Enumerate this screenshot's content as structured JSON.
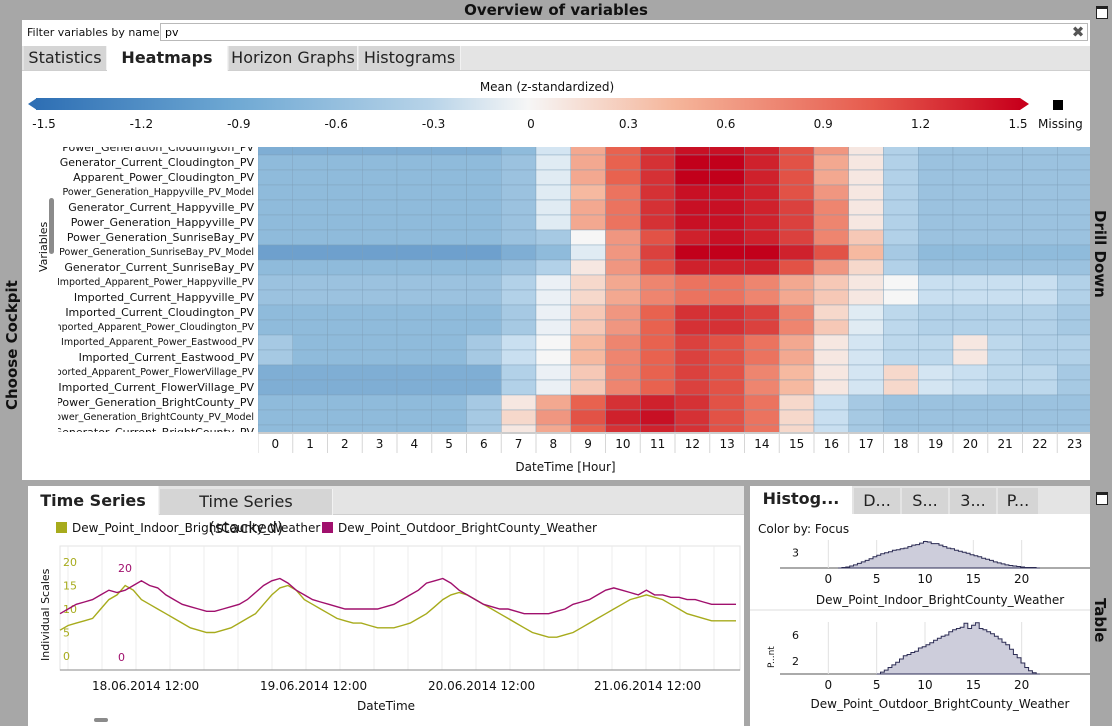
{
  "window": {
    "title": "Overview of variables"
  },
  "side_labels": {
    "left": "Choose Cockpit",
    "right_top": "Drill Down",
    "right_bottom": "Table"
  },
  "filter": {
    "label": "Filter variables by name:",
    "value": "pv"
  },
  "top_tabs": [
    {
      "label": "Statistics",
      "active": false
    },
    {
      "label": "Heatmaps",
      "active": true
    },
    {
      "label": "Horizon Graphs",
      "active": false
    },
    {
      "label": "Histograms",
      "active": false
    }
  ],
  "colorbar": {
    "title": "Mean (z-standardized)",
    "ticks": [
      "-1.5",
      "-1.2",
      "-0.9",
      "-0.6",
      "-0.3",
      "0",
      "0.3",
      "0.6",
      "0.9",
      "1.2",
      "1.5"
    ],
    "missing_label": "Missing",
    "low_color": "#2e6fb4",
    "mid_color": "#f6f6f6",
    "high_color": "#c8001c"
  },
  "heatmap": {
    "y_title": "Variables",
    "x_title": "DateTime [Hour]",
    "hours": [
      "0",
      "1",
      "2",
      "3",
      "4",
      "5",
      "6",
      "7",
      "8",
      "9",
      "10",
      "11",
      "12",
      "13",
      "14",
      "15",
      "16",
      "17",
      "18",
      "19",
      "20",
      "21",
      "22",
      "23"
    ],
    "rows": [
      {
        "label": "Power_Generation_Cloudington_PV",
        "small": false,
        "values": [
          -1.0,
          -1.0,
          -1.0,
          -1.0,
          -1.0,
          -1.0,
          -1.0,
          -0.9,
          -0.3,
          0.5,
          0.9,
          1.2,
          1.4,
          1.4,
          1.3,
          1.0,
          0.6,
          0.1,
          -0.6,
          -0.8,
          -0.8,
          -0.8,
          -0.8,
          -0.8
        ]
      },
      {
        "label": "Generator_Current_Cloudington_PV",
        "small": false,
        "values": [
          -0.9,
          -0.9,
          -0.9,
          -0.9,
          -0.9,
          -0.9,
          -0.9,
          -0.8,
          -0.2,
          0.5,
          0.9,
          1.2,
          1.5,
          1.5,
          1.3,
          1.0,
          0.5,
          0.1,
          -0.6,
          -0.8,
          -0.8,
          -0.8,
          -0.8,
          -0.8
        ]
      },
      {
        "label": "Apparent_Power_Cloudington_PV",
        "small": false,
        "values": [
          -0.9,
          -0.9,
          -0.9,
          -0.9,
          -0.9,
          -0.9,
          -0.9,
          -0.8,
          -0.2,
          0.5,
          0.9,
          1.2,
          1.5,
          1.5,
          1.3,
          1.0,
          0.5,
          0.1,
          -0.6,
          -0.8,
          -0.8,
          -0.8,
          -0.8,
          -0.8
        ]
      },
      {
        "label": "Power_Generation_Happyville_PV_Model",
        "small": true,
        "values": [
          -0.9,
          -0.9,
          -0.9,
          -0.9,
          -0.9,
          -0.9,
          -0.9,
          -0.8,
          -0.2,
          0.4,
          0.8,
          1.2,
          1.4,
          1.4,
          1.3,
          1.0,
          0.6,
          0.1,
          -0.6,
          -0.8,
          -0.8,
          -0.8,
          -0.8,
          -0.8
        ]
      },
      {
        "label": "Generator_Current_Happyville_PV",
        "small": false,
        "values": [
          -0.9,
          -0.9,
          -0.9,
          -0.9,
          -0.9,
          -0.9,
          -0.9,
          -0.8,
          -0.2,
          0.5,
          0.8,
          1.2,
          1.4,
          1.4,
          1.3,
          1.1,
          0.7,
          0.1,
          -0.6,
          -0.8,
          -0.8,
          -0.8,
          -0.8,
          -0.8
        ]
      },
      {
        "label": "Power_Generation_Happyville_PV",
        "small": false,
        "values": [
          -0.9,
          -0.9,
          -0.9,
          -0.9,
          -0.9,
          -0.9,
          -0.9,
          -0.8,
          -0.2,
          0.5,
          0.8,
          1.2,
          1.4,
          1.4,
          1.3,
          1.1,
          0.7,
          0.1,
          -0.6,
          -0.8,
          -0.8,
          -0.8,
          -0.8,
          -0.8
        ]
      },
      {
        "label": "Power_Generation_SunriseBay_PV",
        "small": false,
        "values": [
          -0.9,
          -0.9,
          -0.9,
          -0.9,
          -0.9,
          -0.9,
          -0.9,
          -0.8,
          -0.7,
          0.0,
          0.6,
          1.0,
          1.3,
          1.4,
          1.3,
          1.1,
          0.7,
          0.3,
          -0.6,
          -0.8,
          -0.8,
          -0.8,
          -0.8,
          -0.8
        ]
      },
      {
        "label": "Power_Generation_SunriseBay_PV_Model",
        "small": true,
        "values": [
          -1.1,
          -1.1,
          -1.1,
          -1.1,
          -1.1,
          -1.1,
          -1.1,
          -1.0,
          -0.9,
          -0.2,
          0.6,
          1.1,
          1.5,
          1.5,
          1.5,
          1.3,
          1.0,
          0.4,
          -0.7,
          -0.9,
          -0.9,
          -0.9,
          -0.9,
          -0.9
        ]
      },
      {
        "label": "Generator_Current_SunriseBay_PV",
        "small": false,
        "values": [
          -0.9,
          -0.9,
          -0.9,
          -0.9,
          -0.9,
          -0.9,
          -0.9,
          -0.8,
          -0.6,
          0.1,
          0.6,
          1.0,
          1.3,
          1.3,
          1.3,
          1.0,
          0.6,
          0.2,
          -0.6,
          -0.8,
          -0.8,
          -0.8,
          -0.8,
          -0.8
        ]
      },
      {
        "label": "Imported_Apparent_Power_Happyville_PV",
        "small": true,
        "values": [
          -0.8,
          -0.8,
          -0.8,
          -0.8,
          -0.8,
          -0.8,
          -0.8,
          -0.6,
          -0.1,
          0.2,
          0.5,
          0.7,
          0.8,
          0.8,
          0.7,
          0.5,
          0.3,
          0.1,
          0.0,
          -0.4,
          -0.4,
          -0.4,
          -0.4,
          -0.6
        ]
      },
      {
        "label": "Imported_Current_Happyville_PV",
        "small": false,
        "values": [
          -0.8,
          -0.8,
          -0.8,
          -0.8,
          -0.8,
          -0.8,
          -0.8,
          -0.6,
          -0.1,
          0.2,
          0.5,
          0.7,
          0.8,
          0.8,
          0.7,
          0.5,
          0.3,
          0.1,
          0.0,
          -0.4,
          -0.4,
          -0.4,
          -0.4,
          -0.6
        ]
      },
      {
        "label": "Imported_Current_Cloudington_PV",
        "small": false,
        "values": [
          -0.9,
          -0.9,
          -0.9,
          -0.9,
          -0.9,
          -0.9,
          -0.9,
          -0.7,
          -0.1,
          0.3,
          0.6,
          0.9,
          1.2,
          1.2,
          1.1,
          0.7,
          0.2,
          -0.2,
          -0.5,
          -0.6,
          -0.6,
          -0.6,
          -0.6,
          -0.7
        ]
      },
      {
        "label": "Imported_Apparent_Power_Cloudington_PV",
        "small": true,
        "values": [
          -0.9,
          -0.9,
          -0.9,
          -0.9,
          -0.9,
          -0.9,
          -0.9,
          -0.7,
          -0.1,
          0.3,
          0.6,
          0.9,
          1.2,
          1.2,
          1.1,
          0.7,
          0.3,
          -0.2,
          -0.5,
          -0.6,
          -0.6,
          -0.6,
          -0.6,
          -0.7
        ]
      },
      {
        "label": "Imported_Apparent_Power_Eastwood_PV",
        "small": true,
        "values": [
          -0.7,
          -0.9,
          -0.9,
          -0.9,
          -0.9,
          -0.9,
          -0.7,
          -0.4,
          0.0,
          0.4,
          0.7,
          0.9,
          1.1,
          1.0,
          0.8,
          0.5,
          0.1,
          -0.3,
          -0.5,
          -0.5,
          0.1,
          -0.5,
          -0.6,
          -0.6
        ]
      },
      {
        "label": "Imported_Current_Eastwood_PV",
        "small": false,
        "values": [
          -0.7,
          -0.9,
          -0.9,
          -0.9,
          -0.9,
          -0.9,
          -0.7,
          -0.4,
          0.0,
          0.4,
          0.7,
          0.9,
          1.1,
          1.0,
          0.8,
          0.5,
          0.1,
          -0.3,
          -0.5,
          -0.5,
          0.1,
          -0.5,
          -0.6,
          -0.6
        ]
      },
      {
        "label": "Imported_Apparent_Power_FlowerVillage_PV",
        "small": true,
        "values": [
          -1.0,
          -1.0,
          -1.0,
          -1.0,
          -1.0,
          -1.0,
          -1.0,
          -0.6,
          -0.1,
          0.3,
          0.7,
          0.9,
          1.1,
          1.0,
          0.7,
          0.4,
          0.1,
          -0.3,
          0.2,
          -0.3,
          -0.4,
          -0.5,
          -0.5,
          -0.7
        ]
      },
      {
        "label": "Imported_Current_FlowerVillage_PV",
        "small": false,
        "values": [
          -1.0,
          -1.0,
          -1.0,
          -1.0,
          -1.0,
          -1.0,
          -1.0,
          -0.6,
          -0.1,
          0.3,
          0.7,
          0.9,
          1.1,
          1.0,
          0.7,
          0.4,
          0.1,
          -0.3,
          0.2,
          -0.3,
          -0.4,
          -0.5,
          -0.5,
          -0.7
        ]
      },
      {
        "label": "Power_Generation_BrightCounty_PV",
        "small": false,
        "values": [
          -0.9,
          -0.9,
          -0.9,
          -0.9,
          -0.9,
          -0.9,
          -0.7,
          0.1,
          0.5,
          0.9,
          1.2,
          1.3,
          1.2,
          1.0,
          0.8,
          0.2,
          -0.4,
          -0.7,
          -0.8,
          -0.8,
          -0.8,
          -0.8,
          -0.8,
          -0.8
        ]
      },
      {
        "label": "Power_Generation_BrightCounty_PV_Model",
        "small": true,
        "values": [
          -0.9,
          -0.9,
          -0.9,
          -0.9,
          -0.9,
          -0.9,
          -0.7,
          0.2,
          0.6,
          1.0,
          1.3,
          1.4,
          1.2,
          1.0,
          0.8,
          0.2,
          -0.4,
          -0.7,
          -0.8,
          -0.8,
          -0.8,
          -0.8,
          -0.8,
          -0.8
        ]
      },
      {
        "label": "Generator_Current_BrightCounty_PV",
        "small": false,
        "values": [
          -0.9,
          -0.9,
          -0.9,
          -0.9,
          -0.9,
          -0.9,
          -0.7,
          0.1,
          0.5,
          0.9,
          1.2,
          1.3,
          1.2,
          1.0,
          0.8,
          0.2,
          -0.4,
          -0.7,
          -0.8,
          -0.8,
          -0.8,
          -0.8,
          -0.8,
          -0.8
        ]
      }
    ]
  },
  "time_series": {
    "tabs": [
      {
        "label": "Time Series",
        "active": true
      },
      {
        "label": "Time Series (stacked)",
        "active": false
      }
    ],
    "series": [
      {
        "name": "Dew_Point_Indoor_BrightCounty_Weather",
        "color": "#a7ab1c"
      },
      {
        "name": "Dew_Point_Outdoor_BrightCounty_Weather",
        "color": "#a0106d"
      }
    ],
    "y_title": "Individual Scales",
    "scale1_ticks": [
      "20",
      "15",
      "10",
      "5",
      "0"
    ],
    "scale2_ticks": [
      "20",
      "0"
    ],
    "x_ticks": [
      "18.06.2014 12:00",
      "19.06.2014 12:00",
      "20.06.2014 12:00",
      "21.06.2014 12:00"
    ],
    "x_title": "DateTime",
    "indoor": [
      5.5,
      6.5,
      7,
      7.5,
      8,
      10,
      12,
      13,
      15,
      14,
      12,
      11,
      10,
      9,
      8,
      7,
      6,
      5.5,
      5,
      5,
      5.5,
      6,
      7,
      8,
      9,
      11,
      13,
      14.5,
      15,
      14,
      12,
      11,
      10,
      9,
      8,
      7.5,
      7,
      7,
      6.5,
      6,
      6,
      6,
      6.5,
      7,
      8,
      9,
      10.5,
      12,
      13,
      13.5,
      13,
      12,
      11,
      10,
      9,
      8,
      7,
      6,
      5,
      4.5,
      4,
      4,
      4.5,
      5,
      6,
      7,
      8,
      9,
      10,
      11,
      12,
      12.5,
      13,
      12.5,
      12,
      11,
      10,
      9,
      8.5,
      8,
      7.5,
      7.5,
      7.5,
      7.5
    ],
    "outdoor": [
      9,
      10,
      11,
      11.5,
      12,
      13,
      14,
      13.5,
      14,
      15,
      16,
      15,
      14.5,
      13,
      12,
      11,
      10.5,
      10,
      9.5,
      9.5,
      10,
      10.5,
      11,
      12,
      13.5,
      15,
      16,
      16.5,
      15.5,
      14,
      13,
      12,
      11.5,
      11,
      10.5,
      10,
      10,
      10,
      10,
      10,
      10.5,
      11,
      12,
      13,
      14,
      15.5,
      16,
      16.5,
      15.5,
      14,
      13,
      12,
      11,
      10.5,
      10,
      10,
      9.5,
      9,
      9,
      9,
      9,
      9.5,
      10,
      11,
      11.5,
      12,
      13,
      14,
      14.5,
      14,
      13.5,
      13,
      14,
      13,
      13,
      12.5,
      12.5,
      12,
      12,
      11.5,
      11,
      11,
      11,
      11
    ]
  },
  "histograms": {
    "tabs": [
      {
        "label": "Histog...",
        "active": true
      },
      {
        "label": "D...",
        "active": false
      },
      {
        "label": "S...",
        "active": false
      },
      {
        "label": "3...",
        "active": false
      },
      {
        "label": "P...",
        "active": false
      }
    ],
    "color_by": "Color by: Focus",
    "x_ticks": [
      "0",
      "5",
      "10",
      "15",
      "20"
    ],
    "hist1": {
      "name": "Dew_Point_Indoor_BrightCounty_Weather",
      "y_ticks": [
        "3"
      ],
      "x_min": -5,
      "x_max": 25,
      "bin_start": 1,
      "counts": [
        0,
        0.1,
        0.2,
        0.4,
        0.6,
        0.9,
        1.2,
        1.5,
        1.8,
        2.2,
        2.5,
        2.8,
        3,
        3.2,
        3.5,
        3.6,
        3.8,
        3.9,
        4.2,
        4.5,
        4.6,
        4.9,
        5.2,
        5.1,
        4.8,
        4.8,
        4.5,
        4.2,
        3.9,
        3.8,
        3.5,
        3.3,
        3.1,
        2.9,
        2.6,
        2.4,
        2.2,
        1.9,
        1.7,
        1.5,
        1.2,
        1,
        0.8,
        0.6,
        0.5,
        0.4,
        0.3,
        0.2,
        0.1,
        0.1,
        0.1,
        0
      ]
    },
    "hist2": {
      "name": "Dew_Point_Outdoor_BrightCounty_Weather",
      "y_title": "P...nt",
      "y_ticks": [
        "6",
        "2"
      ],
      "x_min": -5,
      "x_max": 25,
      "bin_start": 5,
      "counts": [
        0,
        0.3,
        0.6,
        1,
        1.4,
        1.8,
        2.3,
        2.8,
        3,
        3.3,
        3.5,
        4,
        4.2,
        4.5,
        4.8,
        5.2,
        5.5,
        5.8,
        6,
        6.5,
        6.8,
        7,
        7.2,
        7.8,
        7,
        7.5,
        7.9,
        7,
        6.8,
        6.5,
        6.2,
        5.8,
        5.4,
        4.9,
        4.5,
        3.8,
        3,
        2.5,
        1.7,
        1,
        0.5,
        0.2,
        0
      ]
    }
  }
}
